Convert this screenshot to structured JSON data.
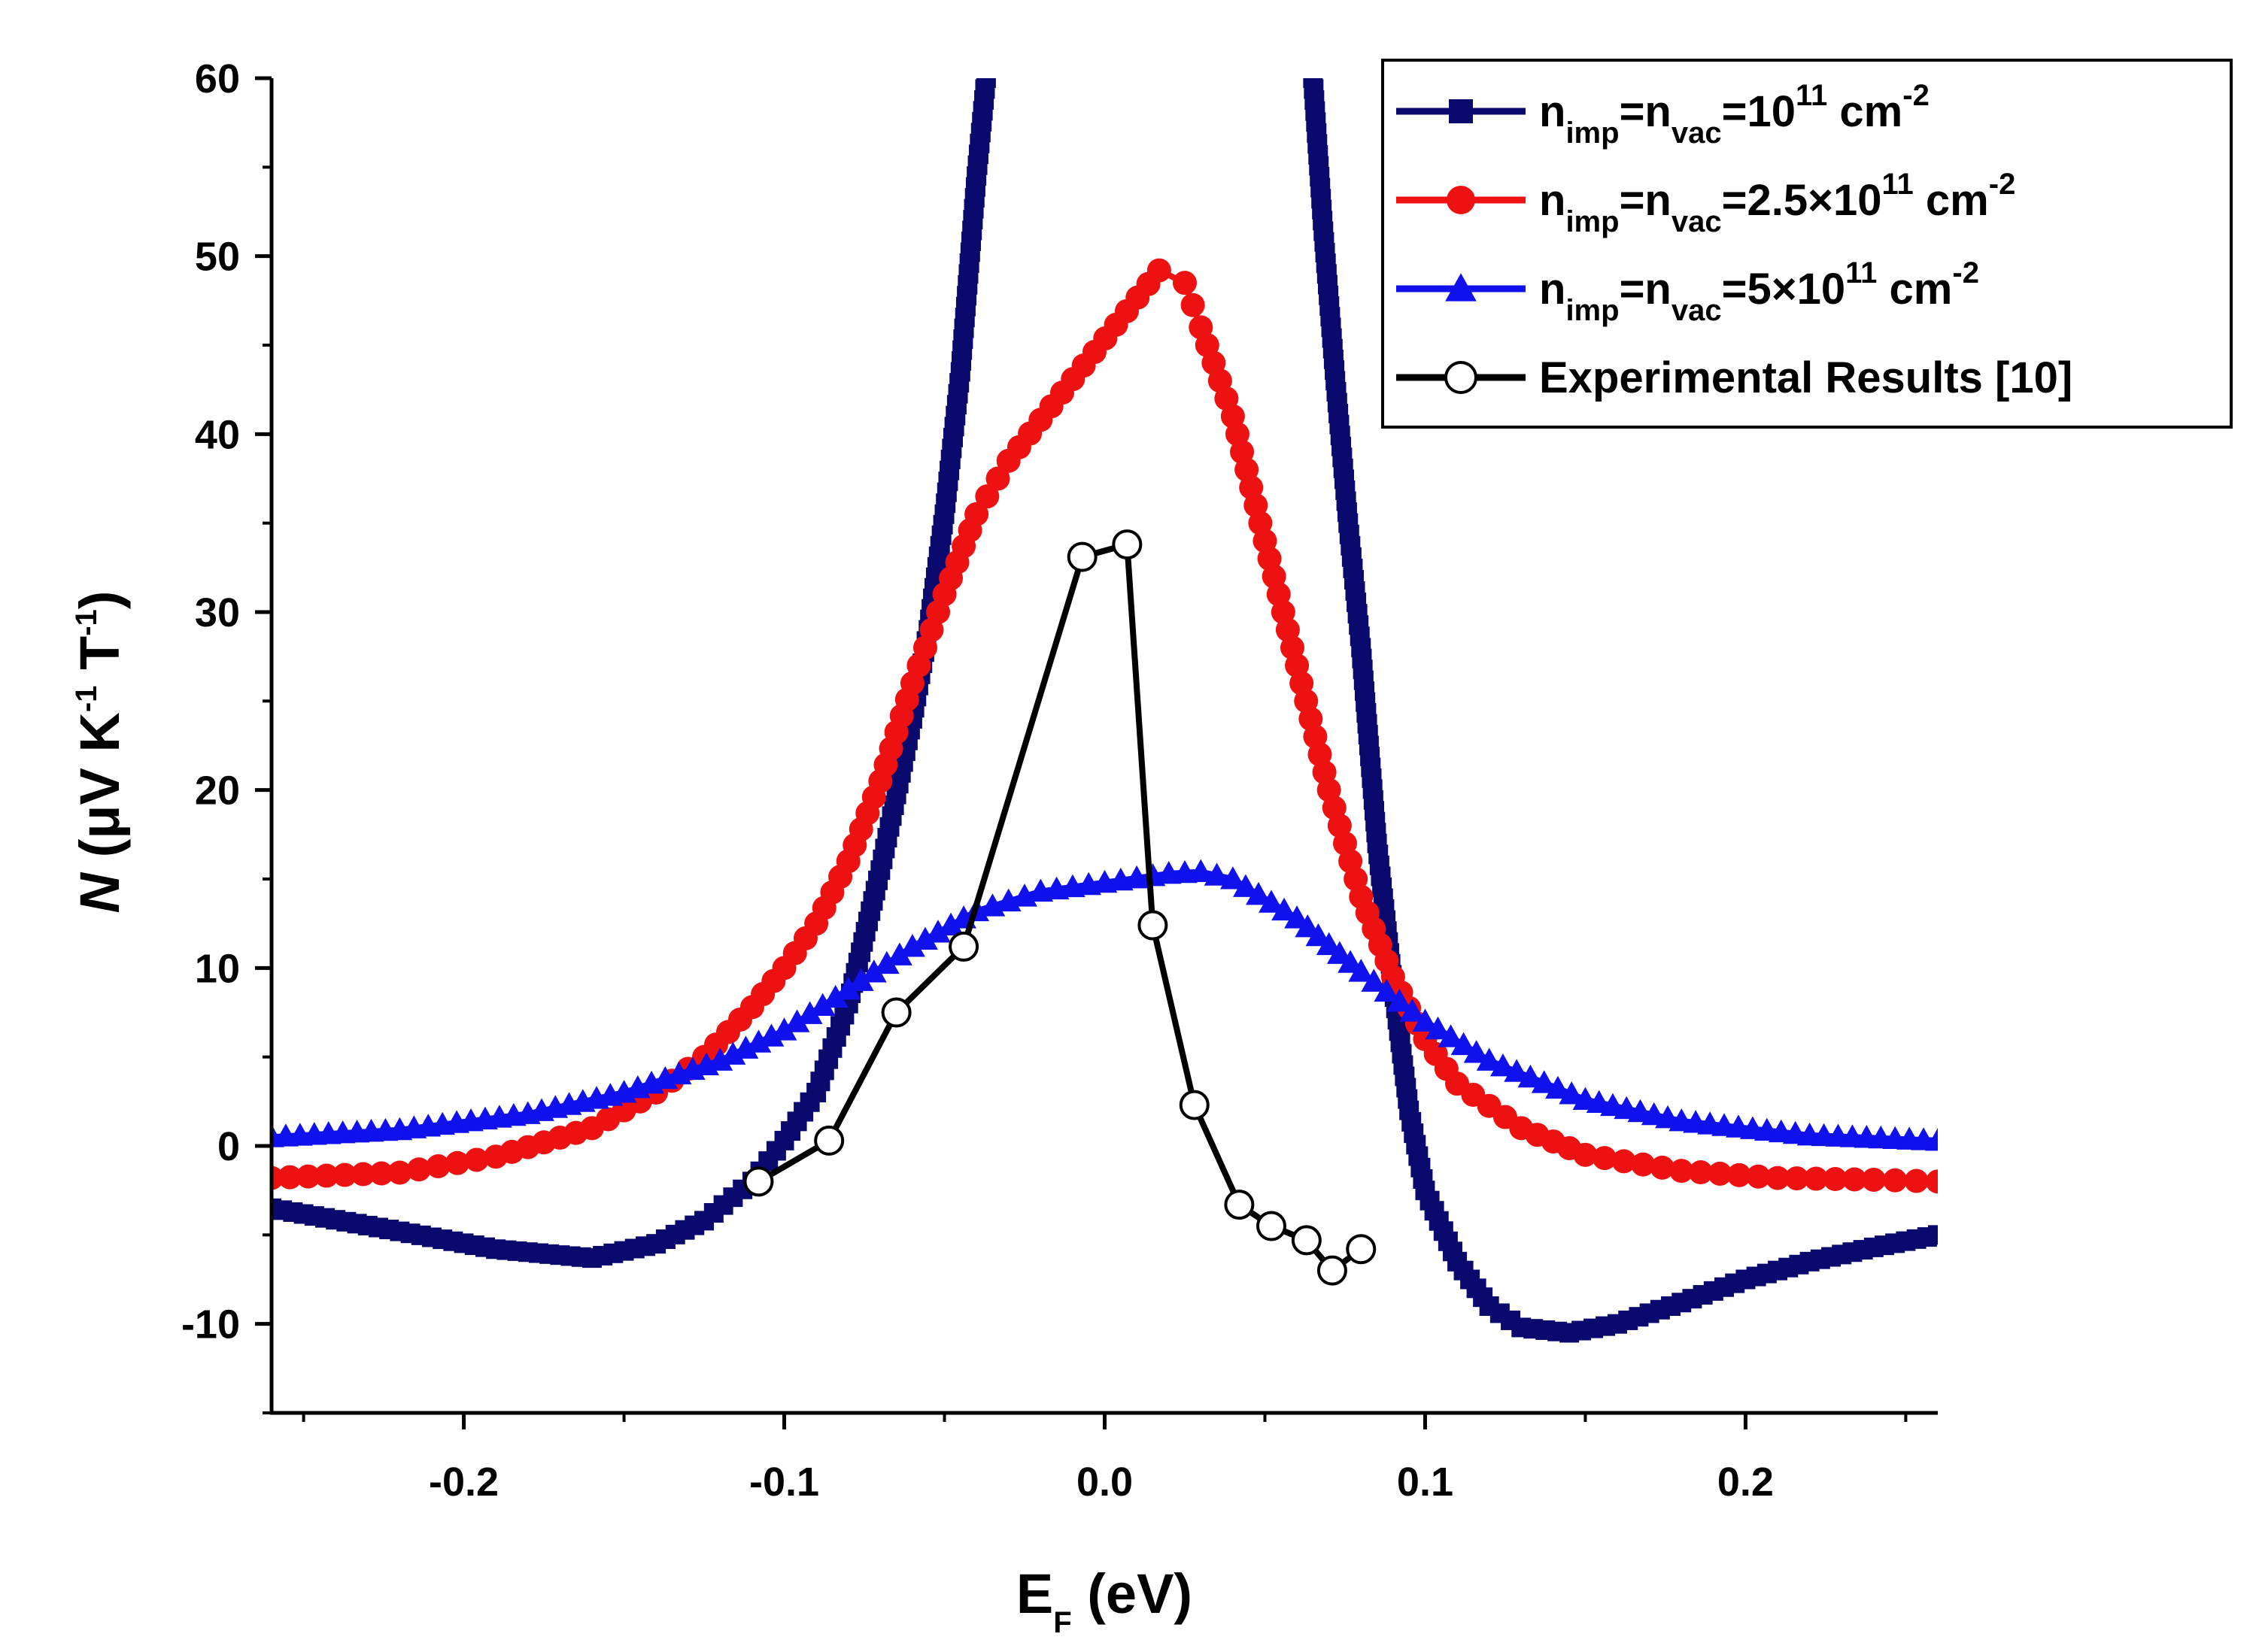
{
  "chart_data": {
    "type": "line",
    "title": "",
    "xlabel": {
      "main": "E",
      "sub": "F",
      "rest": " (eV)"
    },
    "ylabel": {
      "italic": "N",
      "text": " (μV K",
      "sup1": "-1",
      "mid": " T",
      "sup2": "-1",
      "close": ")"
    },
    "xlim": [
      -0.26,
      0.26
    ],
    "ylim": [
      -15,
      60
    ],
    "xticks": [
      -0.2,
      -0.1,
      0.0,
      0.1,
      0.2
    ],
    "xtick_labels": [
      "-0.2",
      "-0.1",
      "0.0",
      "0.1",
      "0.2"
    ],
    "yticks": [
      -10,
      0,
      10,
      20,
      30,
      40,
      50,
      60
    ],
    "ytick_labels": [
      "-10",
      "0",
      "10",
      "20",
      "30",
      "40",
      "50",
      "60"
    ],
    "grid": false,
    "legend_position": "top-right",
    "series": [
      {
        "name": "n_imp=n_vac=10^11 cm^-2",
        "legend": {
          "a": "n",
          "s1": "imp",
          "b": "=n",
          "s2": "vac",
          "c": "=10",
          "sup": "11",
          "d": " cm",
          "sup2": "-2"
        },
        "color": "#0a0a6e",
        "marker": "square",
        "branches": [
          {
            "x": [
              -0.26,
              -0.22,
              -0.19,
              -0.16,
              -0.14,
              -0.125,
              -0.11,
              -0.1,
              -0.09,
              -0.08,
              -0.07,
              -0.06,
              -0.055,
              -0.05,
              -0.045,
              -0.04,
              -0.037
            ],
            "y": [
              -3.5,
              -4.8,
              -5.8,
              -6.3,
              -5.5,
              -4.2,
              -2.0,
              0.3,
              3.0,
              8.0,
              15.5,
              24.0,
              29.0,
              35.5,
              43.5,
              54.5,
              60
            ]
          },
          {
            "x": [
              0.065,
              0.068,
              0.072,
              0.076,
              0.08,
              0.085,
              0.09,
              0.095,
              0.1,
              0.11,
              0.12,
              0.13,
              0.145,
              0.16,
              0.18,
              0.2,
              0.22,
              0.24,
              0.26
            ],
            "y": [
              60,
              52.0,
              43.0,
              35.0,
              28.0,
              17.0,
              9.0,
              2.0,
              -2.5,
              -6.5,
              -9.0,
              -10.2,
              -10.5,
              -10.0,
              -8.8,
              -7.5,
              -6.5,
              -5.7,
              -5.0
            ]
          }
        ]
      },
      {
        "name": "n_imp=n_vac=2.5×10^11 cm^-2",
        "legend": {
          "a": "n",
          "s1": "imp",
          "b": "=n",
          "s2": "vac",
          "c": "=2.5×10",
          "sup": "11",
          "d": " cm",
          "sup2": "-2"
        },
        "color": "#ee1111",
        "marker": "circle",
        "branches": [
          {
            "x": [
              -0.26,
              -0.22,
              -0.19,
              -0.16,
              -0.14,
              -0.125,
              -0.11,
              -0.1,
              -0.09,
              -0.08,
              -0.07,
              -0.06,
              -0.05,
              -0.04,
              -0.03,
              -0.02,
              0.017,
              0.025,
              0.03,
              0.04,
              0.05,
              0.06,
              0.07,
              0.08,
              0.09,
              0.1,
              0.11,
              0.13,
              0.15,
              0.18,
              0.21,
              0.24,
              0.26
            ],
            "y": [
              -1.8,
              -1.5,
              -0.6,
              1.0,
              3.0,
              5.0,
              7.8,
              10.0,
              12.5,
              16.0,
              20.5,
              26.0,
              31.0,
              35.5,
              38.5,
              40.8,
              49.2,
              48.5,
              46.0,
              41.0,
              34.0,
              27.0,
              20.0,
              14.0,
              9.5,
              6.0,
              3.5,
              1.0,
              -0.5,
              -1.4,
              -1.8,
              -1.9,
              -2.0
            ]
          }
        ]
      },
      {
        "name": "n_imp=n_vac=5×10^11 cm^-2",
        "legend": {
          "a": "n",
          "s1": "imp",
          "b": "=n",
          "s2": "vac",
          "c": "=5×10",
          "sup": "11",
          "d": " cm",
          "sup2": "-2"
        },
        "color": "#1111ee",
        "marker": "triangle",
        "branches": [
          {
            "x": [
              -0.26,
              -0.22,
              -0.18,
              -0.15,
              -0.12,
              -0.1,
              -0.08,
              -0.06,
              -0.04,
              -0.02,
              0.0,
              0.02,
              0.03,
              0.04,
              0.06,
              0.08,
              0.1,
              0.12,
              0.15,
              0.18,
              0.22,
              0.26
            ],
            "y": [
              0.5,
              0.9,
              1.8,
              3.0,
              4.8,
              6.5,
              8.8,
              11.2,
              13.2,
              14.3,
              14.8,
              15.3,
              15.4,
              15.0,
              12.8,
              9.8,
              7.0,
              4.8,
              2.6,
              1.4,
              0.6,
              0.3
            ]
          }
        ]
      },
      {
        "name": "Experimental Results [10]",
        "legend": {
          "a": "Experimental Results [10]"
        },
        "color": "#000000",
        "marker": "open-circle",
        "branches": [
          {
            "x": [
              -0.108,
              -0.086,
              -0.065,
              -0.044,
              -0.007,
              0.007,
              0.015,
              0.028,
              0.042,
              0.052,
              0.063,
              0.071,
              0.08
            ],
            "y": [
              -2.0,
              0.3,
              7.5,
              11.2,
              33.1,
              33.8,
              12.4,
              2.3,
              -3.3,
              -4.5,
              -5.3,
              -7.0,
              -5.8
            ]
          }
        ]
      }
    ]
  }
}
